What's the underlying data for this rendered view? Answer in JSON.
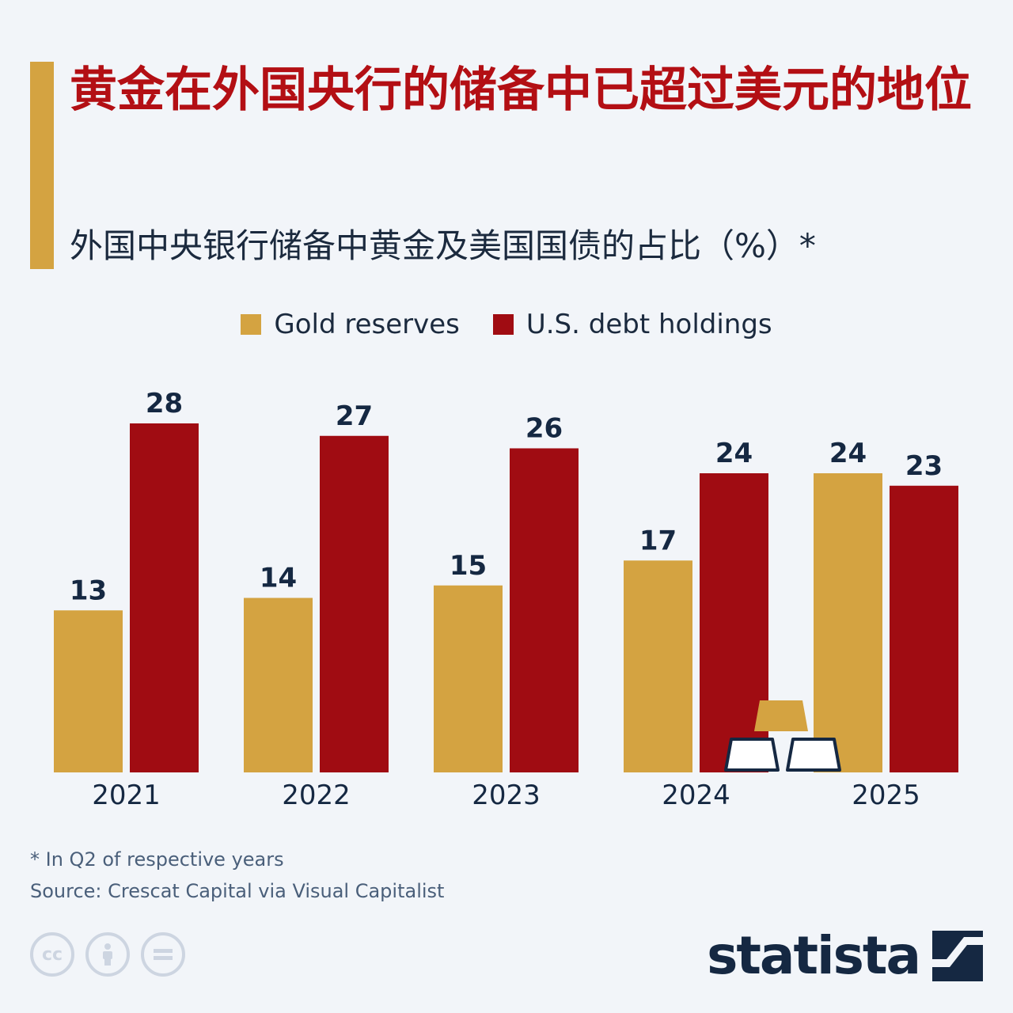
{
  "header": {
    "title": "黄金在外国央行的储备中已超过美元的地位",
    "subtitle": "外国中央银行储备中黄金及美国国债的占比（%）*"
  },
  "colors": {
    "gold": "#d4a341",
    "debt": "#a00c12",
    "title": "#b30f14",
    "text": "#152842",
    "background": "#f2f5f9"
  },
  "chart_data": {
    "type": "bar",
    "title": "外国中央银行储备中黄金及美国国债的占比（%）*",
    "categories": [
      "2021",
      "2022",
      "2023",
      "2024",
      "2025"
    ],
    "series": [
      {
        "name": "Gold reserves",
        "color": "#d4a341",
        "values": [
          13,
          14,
          15,
          17,
          24
        ]
      },
      {
        "name": "U.S. debt holdings",
        "color": "#a00c12",
        "values": [
          28,
          27,
          26,
          24,
          23
        ]
      }
    ],
    "xlabel": "",
    "ylabel": "",
    "ylim": [
      0,
      28
    ],
    "grid": false,
    "legend": "top-center"
  },
  "footer": {
    "note": "* In Q2 of respective years",
    "source": "Source: Crescat Capital via Visual Capitalist",
    "cc_icons": [
      "cc-icon",
      "by-person-icon",
      "nd-equals-icon"
    ],
    "brand": "statista",
    "brand_icon": "statista-logo-icon"
  }
}
